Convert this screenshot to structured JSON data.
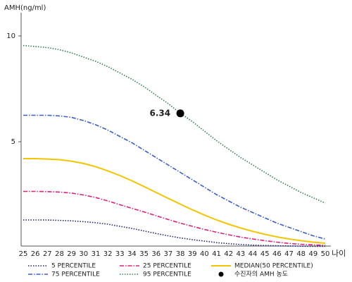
{
  "chart_data": {
    "type": "line",
    "y_label": "AMH(ng/ml)",
    "x_label": "나이",
    "categories": [
      25,
      26,
      27,
      28,
      29,
      30,
      31,
      32,
      33,
      34,
      35,
      36,
      37,
      38,
      39,
      40,
      41,
      42,
      43,
      44,
      45,
      46,
      47,
      48,
      49,
      50
    ],
    "ylim": [
      0,
      11
    ],
    "yticks": [
      5,
      10
    ],
    "series": [
      {
        "name": "5 PERCENTILE",
        "color": "#1a237e",
        "dash": "dotted",
        "values": [
          1.3,
          1.3,
          1.3,
          1.28,
          1.26,
          1.22,
          1.17,
          1.1,
          1.0,
          0.9,
          0.78,
          0.66,
          0.55,
          0.45,
          0.37,
          0.3,
          0.23,
          0.18,
          0.14,
          0.11,
          0.09,
          0.08,
          0.07,
          0.06,
          0.05,
          0.05
        ]
      },
      {
        "name": "75 PERCENTILE",
        "color": "#3a5fcd",
        "dash": "dashdot",
        "values": [
          6.25,
          6.25,
          6.25,
          6.22,
          6.15,
          6.0,
          5.8,
          5.55,
          5.25,
          4.95,
          4.6,
          4.25,
          3.9,
          3.55,
          3.2,
          2.85,
          2.5,
          2.2,
          1.9,
          1.65,
          1.4,
          1.15,
          0.95,
          0.75,
          0.55,
          0.4
        ]
      },
      {
        "name": "25 PERCENTILE",
        "color": "#e0207a",
        "dash": "dashdot",
        "values": [
          2.65,
          2.65,
          2.64,
          2.62,
          2.57,
          2.48,
          2.36,
          2.2,
          2.02,
          1.85,
          1.68,
          1.5,
          1.32,
          1.15,
          1.0,
          0.85,
          0.72,
          0.6,
          0.49,
          0.4,
          0.32,
          0.25,
          0.19,
          0.15,
          0.12,
          0.1
        ]
      },
      {
        "name": "95 PERCENTILE",
        "color": "#2e7d4f",
        "dash": "dotted",
        "values": [
          9.55,
          9.5,
          9.45,
          9.35,
          9.2,
          9.0,
          8.8,
          8.55,
          8.25,
          7.95,
          7.6,
          7.2,
          6.8,
          6.35,
          5.95,
          5.5,
          5.05,
          4.65,
          4.25,
          3.9,
          3.55,
          3.2,
          2.9,
          2.6,
          2.35,
          2.1
        ]
      },
      {
        "name": "MEDIAN(50 PERCENTILE)",
        "color": "#f5c400",
        "dash": "solid",
        "values": [
          4.2,
          4.2,
          4.18,
          4.15,
          4.08,
          3.97,
          3.82,
          3.62,
          3.4,
          3.15,
          2.88,
          2.6,
          2.32,
          2.05,
          1.78,
          1.53,
          1.3,
          1.1,
          0.92,
          0.76,
          0.62,
          0.5,
          0.4,
          0.32,
          0.25,
          0.2
        ]
      }
    ],
    "point": {
      "name": "수진자의 AMH 농도",
      "x": 38,
      "value": 6.34,
      "color": "#000000"
    }
  }
}
